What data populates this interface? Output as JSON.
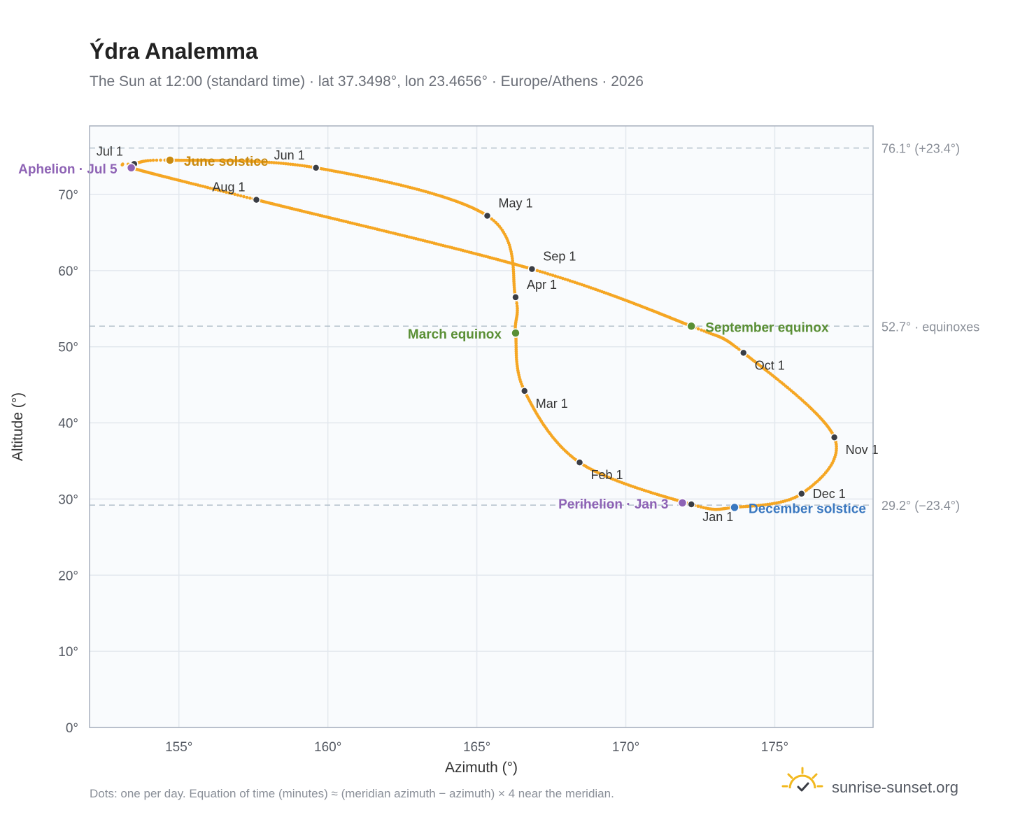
{
  "title": "Ýdra Analemma",
  "subtitle": "The Sun at 12:00 (standard time) · lat 37.3498°, lon 23.4656° · Europe/Athens · 2026",
  "footnote": "Dots: one per day. Equation of time (minutes) ≈ (meridian azimuth − azimuth) × 4 near the meridian.",
  "brand": {
    "text": "sunrise-sunset.org",
    "icon": "sun-logo-icon"
  },
  "colors": {
    "curve": "#f5a623",
    "month_point": "#3a3d45",
    "aphelion": "#8e63b5",
    "perihelion": "#8e63b5",
    "june_solstice": "#c98a10",
    "equinox": "#5a8f35",
    "december_solstice": "#3a78c0",
    "plot_bg": "#f9fbfd",
    "grid": "#e3e8ee",
    "border": "#a7b0bd",
    "ref_line": "#b3c0cb"
  },
  "chart_data": {
    "type": "scatter",
    "title": "Ýdra Analemma",
    "xlabel": "Azimuth (°)",
    "ylabel": "Altitude (°)",
    "xlim": [
      152,
      178.3
    ],
    "ylim": [
      0,
      79
    ],
    "x_ticks": [
      155,
      160,
      165,
      170,
      175
    ],
    "x_tick_labels": [
      "155°",
      "160°",
      "165°",
      "170°",
      "175°"
    ],
    "y_ticks": [
      0,
      10,
      20,
      30,
      40,
      50,
      60,
      70
    ],
    "y_tick_labels": [
      "0°",
      "10°",
      "20°",
      "30°",
      "40°",
      "50°",
      "60°",
      "70°"
    ],
    "grid": true,
    "curve_control_points": [
      {
        "date": "Jan 1",
        "x": 172.2,
        "y": 29.3
      },
      {
        "date": "Feb 1",
        "x": 168.45,
        "y": 34.8
      },
      {
        "date": "Mar 1",
        "x": 166.6,
        "y": 44.2
      },
      {
        "date": "Mar 20",
        "x": 166.3,
        "y": 51.8
      },
      {
        "date": "Apr 1",
        "x": 166.3,
        "y": 56.5
      },
      {
        "date": "May 1",
        "x": 165.35,
        "y": 67.2
      },
      {
        "date": "Jun 1",
        "x": 159.6,
        "y": 73.5
      },
      {
        "date": "Jun 21",
        "x": 154.7,
        "y": 74.5
      },
      {
        "date": "Jul 1",
        "x": 153.5,
        "y": 74.0
      },
      {
        "date": "Jul 5",
        "x": 153.4,
        "y": 73.5
      },
      {
        "date": "Aug 1",
        "x": 157.6,
        "y": 69.3
      },
      {
        "date": "Sep 1",
        "x": 166.85,
        "y": 60.2
      },
      {
        "date": "Sep 23",
        "x": 172.2,
        "y": 52.7
      },
      {
        "date": "Oct 1",
        "x": 173.95,
        "y": 49.2
      },
      {
        "date": "Nov 1",
        "x": 177.0,
        "y": 38.1
      },
      {
        "date": "Dec 1",
        "x": 175.9,
        "y": 30.7
      },
      {
        "date": "Dec 21",
        "x": 173.65,
        "y": 28.9
      },
      {
        "date": "Jan 1",
        "x": 172.2,
        "y": 29.3
      }
    ],
    "month_points": [
      {
        "label": "Jan 1",
        "x": 172.2,
        "y": 29.3,
        "anchor": "below-right"
      },
      {
        "label": "Feb 1",
        "x": 168.45,
        "y": 34.8,
        "anchor": "below-right"
      },
      {
        "label": "Mar 1",
        "x": 166.6,
        "y": 44.2,
        "anchor": "below-right"
      },
      {
        "label": "Apr 1",
        "x": 166.3,
        "y": 56.5,
        "anchor": "above-right"
      },
      {
        "label": "May 1",
        "x": 165.35,
        "y": 67.2,
        "anchor": "above-right"
      },
      {
        "label": "Jun 1",
        "x": 159.6,
        "y": 73.5,
        "anchor": "above-left"
      },
      {
        "label": "Jul 1",
        "x": 153.5,
        "y": 74.0,
        "anchor": "above-left"
      },
      {
        "label": "Aug 1",
        "x": 157.6,
        "y": 69.3,
        "anchor": "above-left"
      },
      {
        "label": "Sep 1",
        "x": 166.85,
        "y": 60.2,
        "anchor": "above-right"
      },
      {
        "label": "Oct 1",
        "x": 173.95,
        "y": 49.2,
        "anchor": "below-right"
      },
      {
        "label": "Nov 1",
        "x": 177.0,
        "y": 38.1,
        "anchor": "below-right"
      },
      {
        "label": "Dec 1",
        "x": 175.9,
        "y": 30.7,
        "anchor": "right"
      }
    ],
    "events": [
      {
        "label": "Aphelion · Jul 5",
        "x": 153.4,
        "y": 73.5,
        "color_key": "aphelion",
        "anchor": "left"
      },
      {
        "label": "June solstice",
        "x": 154.7,
        "y": 74.5,
        "color_key": "june_solstice",
        "anchor": "right"
      },
      {
        "label": "March equinox",
        "x": 166.3,
        "y": 51.8,
        "color_key": "equinox",
        "anchor": "left"
      },
      {
        "label": "September equinox",
        "x": 172.2,
        "y": 52.7,
        "color_key": "equinox",
        "anchor": "right"
      },
      {
        "label": "Perihelion · Jan 3",
        "x": 171.9,
        "y": 29.5,
        "color_key": "perihelion",
        "anchor": "left"
      },
      {
        "label": "December solstice",
        "x": 173.65,
        "y": 28.9,
        "color_key": "december_solstice",
        "anchor": "right"
      }
    ],
    "reference_lines": [
      {
        "y": 76.1,
        "label": "76.1° (+23.4°)"
      },
      {
        "y": 52.7,
        "label": "52.7° · equinoxes"
      },
      {
        "y": 29.2,
        "label": "29.2° (−23.4°)"
      }
    ]
  }
}
